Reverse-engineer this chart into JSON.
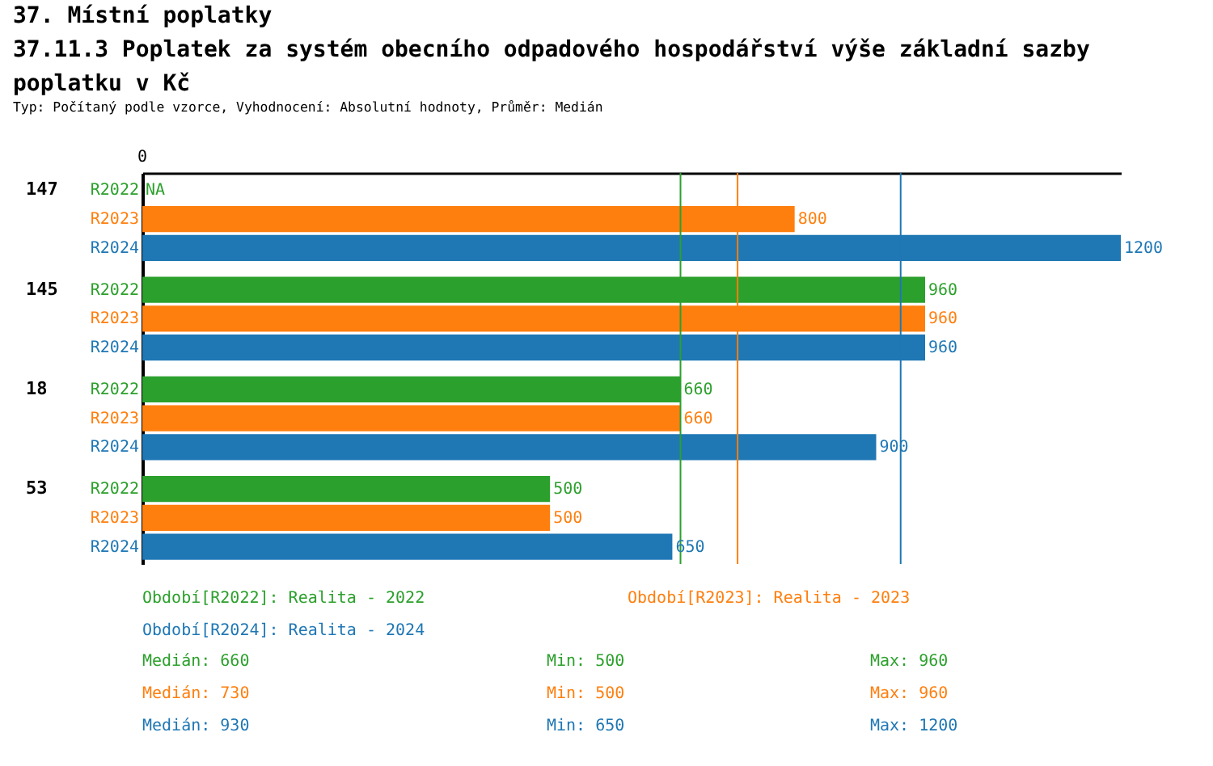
{
  "chart_data": {
    "type": "bar",
    "orientation": "horizontal",
    "title": "37. Místní poplatky",
    "subtitle": "37.11.3 Poplatek za systém obecního odpadového hospodářství   výše základní sazby poplatku v Kč",
    "categories": [
      "147",
      "145",
      "18",
      "53"
    ],
    "series": [
      {
        "name": "R2022",
        "color": "#2ca02c",
        "values": [
          null,
          960,
          660,
          500
        ],
        "value_labels": [
          "NA",
          "960",
          "660",
          "500"
        ]
      },
      {
        "name": "R2023",
        "color": "#ff7f0e",
        "values": [
          800,
          960,
          660,
          500
        ],
        "value_labels": [
          "800",
          "960",
          "660",
          "500"
        ]
      },
      {
        "name": "R2024",
        "color": "#1f77b4",
        "values": [
          1200,
          960,
          900,
          650
        ],
        "value_labels": [
          "1200",
          "960",
          "900",
          "650"
        ]
      }
    ],
    "ref_lines": [
      {
        "axis": "x",
        "value": 660,
        "color": "#2ca02c"
      },
      {
        "axis": "x",
        "value": 730,
        "color": "#ff7f0e"
      },
      {
        "axis": "x",
        "value": 930,
        "color": "#1f77b4"
      }
    ],
    "annotations": [
      "Typ: Počítaný podle vzorce, Vyhodnocení: Absolutní hodnoty, Průměr: Medián",
      "0",
      "Období[R2022]: Realita - 2022",
      "Období[R2023]: Realita - 2023",
      "Období[R2024]: Realita - 2024",
      "Medián: 660",
      "Min: 500",
      "Max: 960",
      "Medián: 730",
      "Min: 500",
      "Max: 960",
      "Medián: 930",
      "Min: 650",
      "Max: 1200"
    ]
  }
}
